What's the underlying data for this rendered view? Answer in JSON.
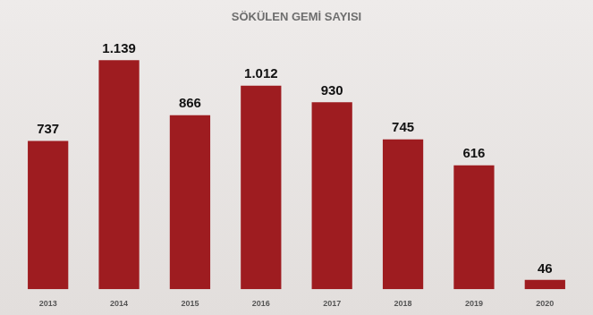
{
  "chart_data": {
    "type": "bar",
    "title": "SÖKÜLEN GEMİ SAYISI",
    "categories": [
      "2013",
      "2014",
      "2015",
      "2016",
      "2017",
      "2018",
      "2019",
      "2020"
    ],
    "values": [
      737,
      1139,
      866,
      1012,
      930,
      745,
      616,
      46
    ],
    "value_labels": [
      "737",
      "1.139",
      "866",
      "1.012",
      "930",
      "745",
      "616",
      "46"
    ],
    "color": "#9e1c20",
    "grid": false,
    "data_labels": true,
    "tick_labels": "x"
  }
}
